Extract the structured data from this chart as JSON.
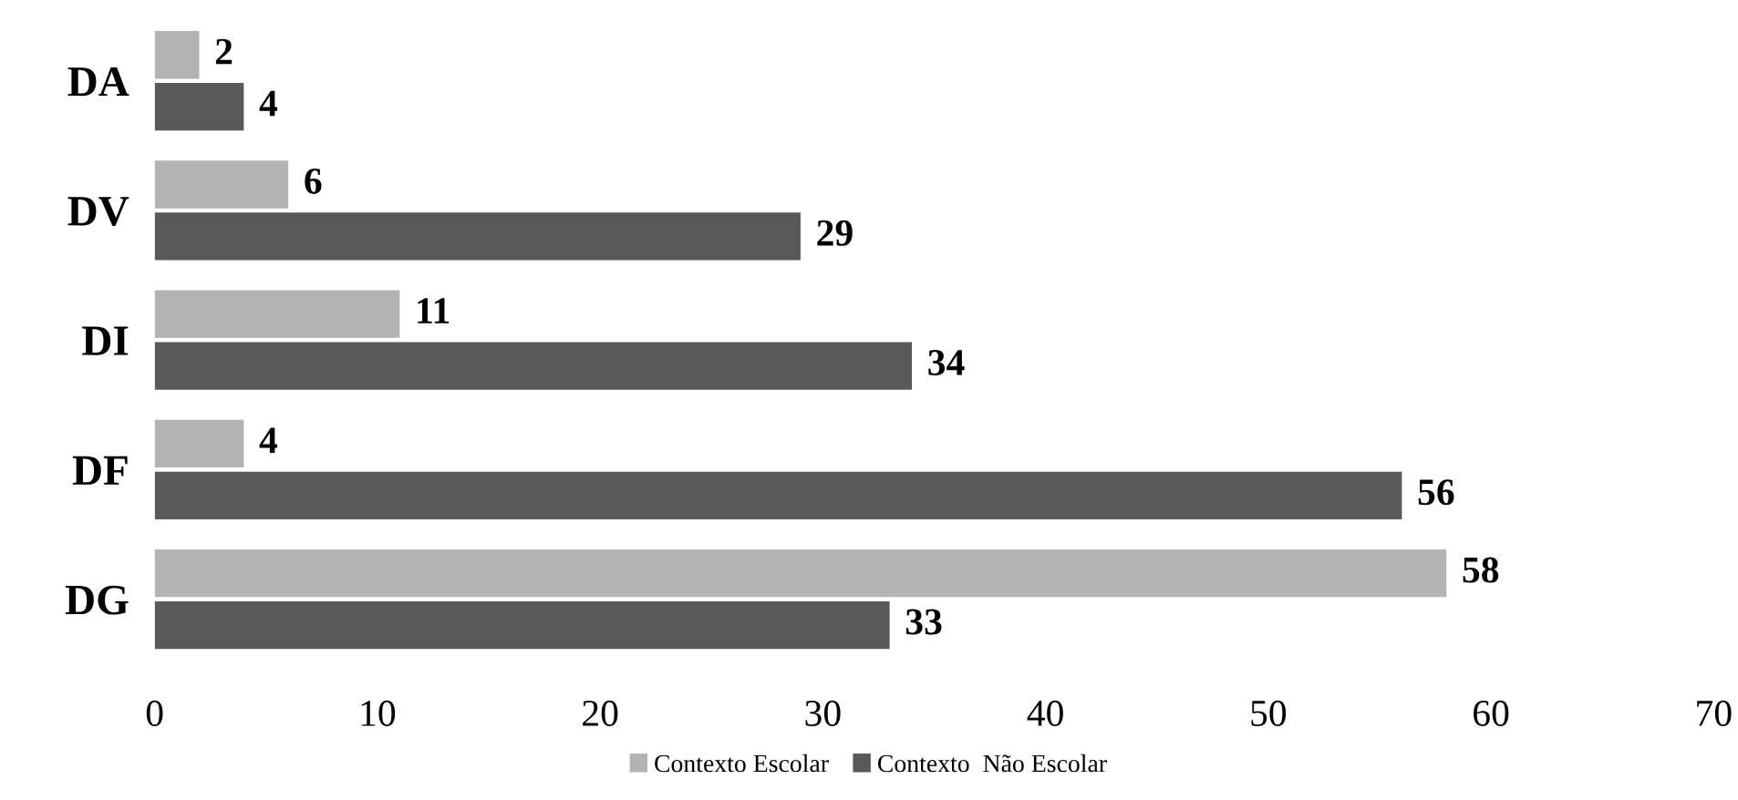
{
  "chart_data": {
    "type": "bar",
    "orientation": "horizontal",
    "categories": [
      "DA",
      "DV",
      "DI",
      "DF",
      "DG"
    ],
    "series": [
      {
        "name": "Contexto Escolar",
        "color": "#b3b3b3",
        "values": [
          2,
          6,
          11,
          4,
          58
        ]
      },
      {
        "name": "Contexto  Não Escolar",
        "color": "#595959",
        "values": [
          4,
          29,
          34,
          56,
          33
        ]
      }
    ],
    "xlim": [
      0,
      70
    ],
    "xticks": [
      0,
      10,
      20,
      30,
      40,
      50,
      60,
      70
    ],
    "data_labels": true,
    "grid": false,
    "legend": "bottom"
  }
}
